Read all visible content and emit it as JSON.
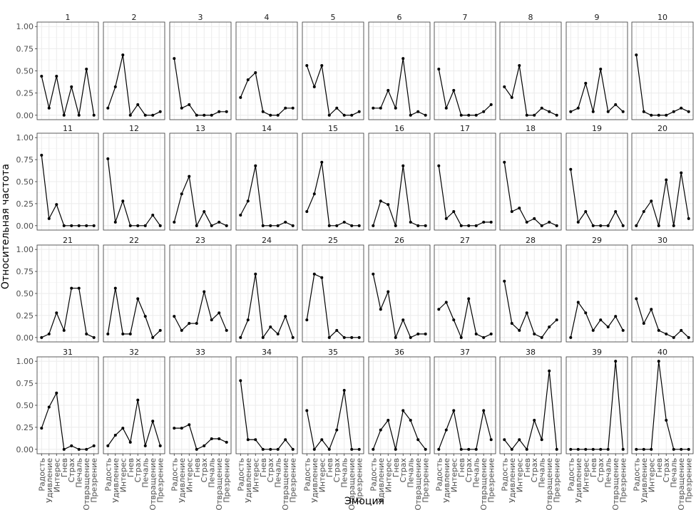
{
  "chart_data": {
    "type": "line",
    "xlabel": "Эмоция",
    "ylabel": "Относительная частота",
    "ylim": [
      0,
      1
    ],
    "yticks": [
      "0.00",
      "0.25",
      "0.50",
      "0.75",
      "1.00"
    ],
    "categories": [
      "Радость",
      "Удивление",
      "Интерес",
      "Гнев",
      "Страх",
      "Печаль",
      "Отвращение",
      "Презрение"
    ],
    "grid": true,
    "facet_layout": {
      "rows": 4,
      "cols": 10
    },
    "series": [
      {
        "name": "1",
        "values": [
          0.44,
          0.08,
          0.44,
          0.0,
          0.32,
          0.0,
          0.52,
          0.0
        ]
      },
      {
        "name": "2",
        "values": [
          0.08,
          0.32,
          0.68,
          0.0,
          0.12,
          0.0,
          0.0,
          0.04
        ]
      },
      {
        "name": "3",
        "values": [
          0.64,
          0.08,
          0.12,
          0.0,
          0.0,
          0.0,
          0.04,
          0.04
        ]
      },
      {
        "name": "4",
        "values": [
          0.2,
          0.4,
          0.48,
          0.04,
          0.0,
          0.0,
          0.08,
          0.08
        ]
      },
      {
        "name": "5",
        "values": [
          0.56,
          0.32,
          0.56,
          0.0,
          0.08,
          0.0,
          0.0,
          0.04
        ]
      },
      {
        "name": "6",
        "values": [
          0.08,
          0.08,
          0.28,
          0.08,
          0.64,
          0.0,
          0.04,
          0.0
        ]
      },
      {
        "name": "7",
        "values": [
          0.52,
          0.08,
          0.28,
          0.0,
          0.0,
          0.0,
          0.04,
          0.12
        ]
      },
      {
        "name": "8",
        "values": [
          0.32,
          0.2,
          0.56,
          0.0,
          0.0,
          0.08,
          0.04,
          0.0
        ]
      },
      {
        "name": "9",
        "values": [
          0.04,
          0.08,
          0.36,
          0.04,
          0.52,
          0.04,
          0.12,
          0.04
        ]
      },
      {
        "name": "10",
        "values": [
          0.68,
          0.04,
          0.0,
          0.0,
          0.0,
          0.04,
          0.08,
          0.04
        ]
      },
      {
        "name": "11",
        "values": [
          0.8,
          0.08,
          0.24,
          0.0,
          0.0,
          0.0,
          0.0,
          0.0
        ]
      },
      {
        "name": "12",
        "values": [
          0.76,
          0.04,
          0.28,
          0.0,
          0.0,
          0.0,
          0.12,
          0.0
        ]
      },
      {
        "name": "13",
        "values": [
          0.04,
          0.36,
          0.56,
          0.0,
          0.16,
          0.0,
          0.04,
          0.0
        ]
      },
      {
        "name": "14",
        "values": [
          0.12,
          0.28,
          0.68,
          0.0,
          0.0,
          0.0,
          0.04,
          0.0
        ]
      },
      {
        "name": "15",
        "values": [
          0.16,
          0.36,
          0.72,
          0.0,
          0.0,
          0.04,
          0.0,
          0.0
        ]
      },
      {
        "name": "16",
        "values": [
          0.0,
          0.28,
          0.24,
          0.0,
          0.68,
          0.04,
          0.0,
          0.0
        ]
      },
      {
        "name": "17",
        "values": [
          0.68,
          0.08,
          0.16,
          0.0,
          0.0,
          0.0,
          0.04,
          0.04
        ]
      },
      {
        "name": "18",
        "values": [
          0.72,
          0.16,
          0.2,
          0.04,
          0.08,
          0.0,
          0.04,
          0.0
        ]
      },
      {
        "name": "19",
        "values": [
          0.64,
          0.04,
          0.16,
          0.0,
          0.0,
          0.0,
          0.16,
          0.0
        ]
      },
      {
        "name": "20",
        "values": [
          0.0,
          0.16,
          0.28,
          0.0,
          0.52,
          0.0,
          0.6,
          0.08
        ]
      },
      {
        "name": "21",
        "values": [
          0.0,
          0.04,
          0.28,
          0.08,
          0.56,
          0.56,
          0.04,
          0.0
        ]
      },
      {
        "name": "22",
        "values": [
          0.04,
          0.56,
          0.04,
          0.04,
          0.44,
          0.24,
          0.0,
          0.08
        ]
      },
      {
        "name": "23",
        "values": [
          0.24,
          0.08,
          0.16,
          0.16,
          0.52,
          0.2,
          0.28,
          0.08
        ]
      },
      {
        "name": "24",
        "values": [
          0.0,
          0.2,
          0.72,
          0.0,
          0.12,
          0.04,
          0.24,
          0.0
        ]
      },
      {
        "name": "25",
        "values": [
          0.2,
          0.72,
          0.68,
          0.0,
          0.08,
          0.0,
          0.0,
          0.0
        ]
      },
      {
        "name": "26",
        "values": [
          0.72,
          0.32,
          0.52,
          0.0,
          0.2,
          0.0,
          0.04,
          0.04
        ]
      },
      {
        "name": "27",
        "values": [
          0.32,
          0.4,
          0.2,
          0.0,
          0.44,
          0.04,
          0.0,
          0.04
        ]
      },
      {
        "name": "28",
        "values": [
          0.64,
          0.16,
          0.08,
          0.28,
          0.04,
          0.0,
          0.12,
          0.2
        ]
      },
      {
        "name": "29",
        "values": [
          0.0,
          0.4,
          0.28,
          0.08,
          0.2,
          0.12,
          0.24,
          0.08
        ]
      },
      {
        "name": "30",
        "values": [
          0.44,
          0.16,
          0.32,
          0.08,
          0.04,
          0.0,
          0.08,
          0.0
        ]
      },
      {
        "name": "31",
        "values": [
          0.24,
          0.48,
          0.64,
          0.0,
          0.04,
          0.0,
          0.0,
          0.04
        ]
      },
      {
        "name": "32",
        "values": [
          0.04,
          0.16,
          0.24,
          0.08,
          0.56,
          0.04,
          0.32,
          0.04
        ]
      },
      {
        "name": "33",
        "values": [
          0.24,
          0.24,
          0.28,
          0.0,
          0.04,
          0.12,
          0.12,
          0.08
        ]
      },
      {
        "name": "34",
        "values": [
          0.78,
          0.11,
          0.11,
          0.0,
          0.0,
          0.0,
          0.11,
          0.0
        ]
      },
      {
        "name": "35",
        "values": [
          0.44,
          0.0,
          0.11,
          0.0,
          0.22,
          0.67,
          0.0,
          0.0
        ]
      },
      {
        "name": "36",
        "values": [
          0.0,
          0.22,
          0.33,
          0.0,
          0.44,
          0.33,
          0.11,
          0.0
        ]
      },
      {
        "name": "37",
        "values": [
          0.0,
          0.22,
          0.44,
          0.0,
          0.0,
          0.0,
          0.44,
          0.11
        ]
      },
      {
        "name": "38",
        "values": [
          0.11,
          0.0,
          0.11,
          0.0,
          0.33,
          0.11,
          0.89,
          0.0
        ]
      },
      {
        "name": "39",
        "values": [
          0.0,
          0.0,
          0.0,
          0.0,
          0.0,
          0.0,
          1.0,
          0.0
        ]
      },
      {
        "name": "40",
        "values": [
          0.0,
          0.0,
          0.0,
          1.0,
          0.33,
          0.0,
          0.0,
          0.0
        ]
      }
    ]
  }
}
